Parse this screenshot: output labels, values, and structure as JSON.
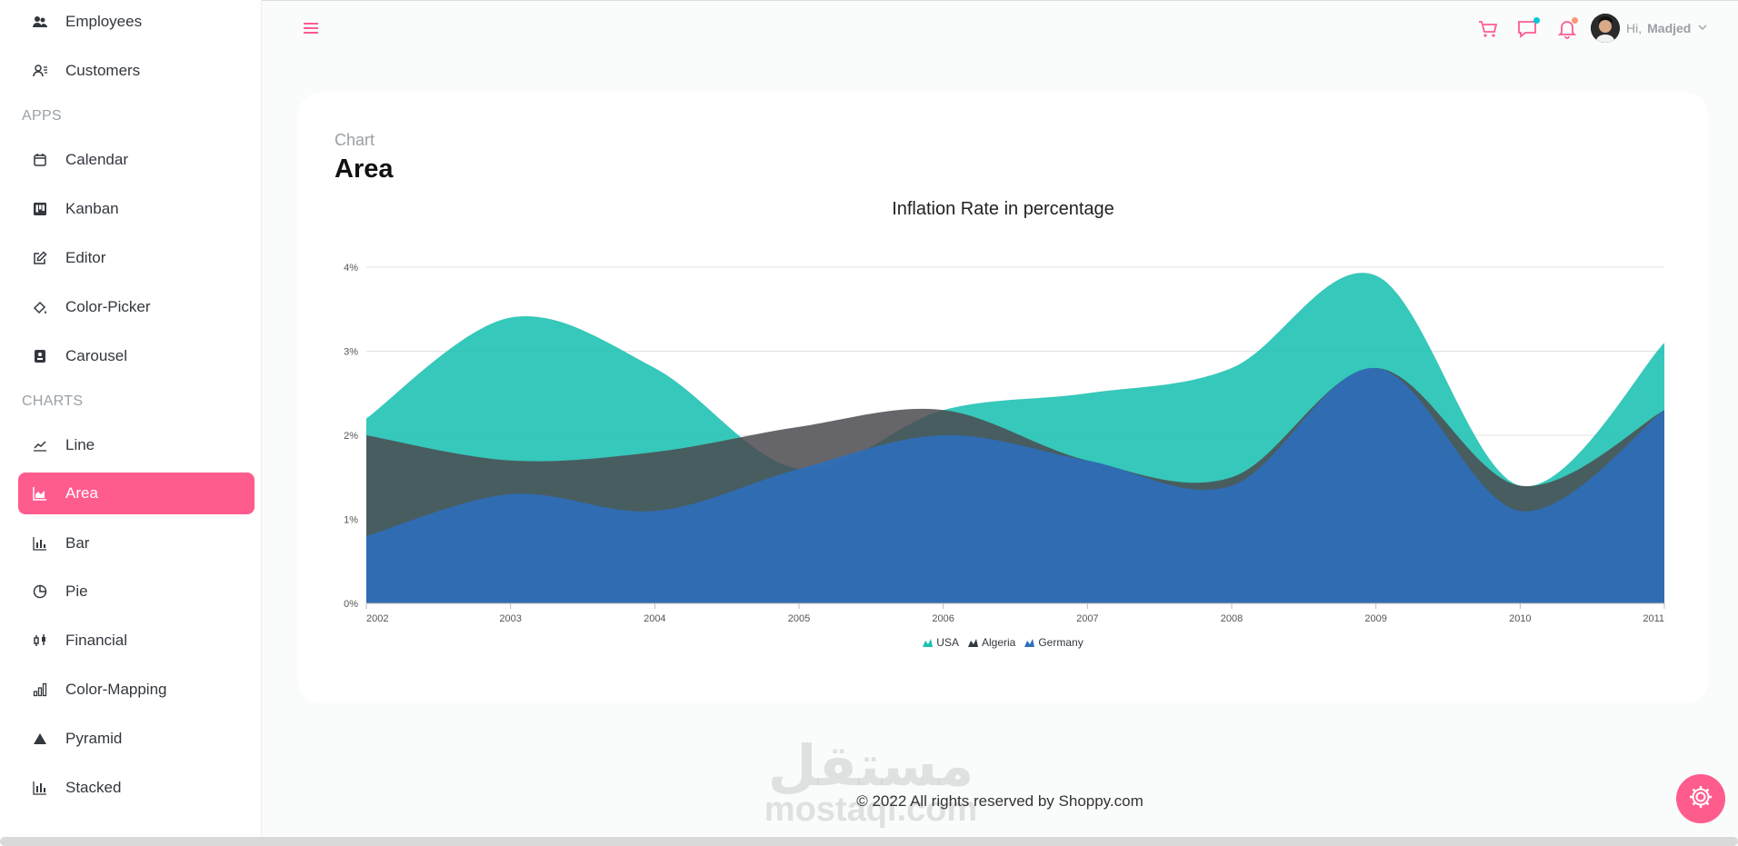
{
  "sidebar": {
    "items_top": [
      {
        "label": "Employees",
        "icon": "employees-icon"
      },
      {
        "label": "Customers",
        "icon": "customers-icon"
      }
    ],
    "apps_title": "APPS",
    "apps": [
      {
        "label": "Calendar",
        "icon": "calendar-icon"
      },
      {
        "label": "Kanban",
        "icon": "kanban-icon"
      },
      {
        "label": "Editor",
        "icon": "editor-icon"
      },
      {
        "label": "Color-Picker",
        "icon": "color-picker-icon"
      },
      {
        "label": "Carousel",
        "icon": "carousel-icon"
      }
    ],
    "charts_title": "CHARTS",
    "charts": [
      {
        "label": "Line",
        "icon": "line-chart-icon"
      },
      {
        "label": "Area",
        "icon": "area-chart-icon",
        "active": true
      },
      {
        "label": "Bar",
        "icon": "bar-chart-icon"
      },
      {
        "label": "Pie",
        "icon": "pie-chart-icon"
      },
      {
        "label": "Financial",
        "icon": "financial-icon"
      },
      {
        "label": "Color-Mapping",
        "icon": "color-mapping-icon"
      },
      {
        "label": "Pyramid",
        "icon": "pyramid-icon"
      },
      {
        "label": "Stacked",
        "icon": "stacked-icon"
      }
    ]
  },
  "header": {
    "greeting": "Hi,",
    "username": "Madjed",
    "icons": [
      "menu-icon",
      "cart-icon",
      "chat-icon",
      "notification-icon",
      "chevron-down-icon"
    ]
  },
  "card": {
    "category": "Chart",
    "title": "Area"
  },
  "chart_data": {
    "type": "area",
    "title": "Inflation Rate in percentage",
    "xlabel": "",
    "ylabel": "",
    "x": [
      "2002",
      "2003",
      "2004",
      "2005",
      "2006",
      "2007",
      "2008",
      "2009",
      "2010",
      "2011"
    ],
    "y_ticks": [
      "0%",
      "1%",
      "2%",
      "3%",
      "4%"
    ],
    "ylim": [
      0,
      4
    ],
    "grid": true,
    "legend_position": "bottom",
    "series": [
      {
        "name": "USA",
        "color": "#1ac0b0",
        "values": [
          2.2,
          3.4,
          2.8,
          1.6,
          2.3,
          2.5,
          2.8,
          3.9,
          1.4,
          3.1
        ]
      },
      {
        "name": "Algeria",
        "color": "#4b4a50",
        "values": [
          2.0,
          1.7,
          1.8,
          2.1,
          2.3,
          1.7,
          1.5,
          2.8,
          1.4,
          2.3
        ]
      },
      {
        "name": "Germany",
        "color": "#2e6ebb",
        "values": [
          0.8,
          1.3,
          1.1,
          1.6,
          2.0,
          1.7,
          1.4,
          2.8,
          1.1,
          2.3
        ]
      }
    ]
  },
  "footer": {
    "text": "© 2022 All rights reserved by Shoppy.com"
  },
  "watermark": {
    "arabic": "مستقل",
    "latin": "mostaqi.com"
  },
  "colors": {
    "accent": "#ff5c8e",
    "cart_dot": "#03c9d7",
    "bell_dot": "#fb9678"
  }
}
